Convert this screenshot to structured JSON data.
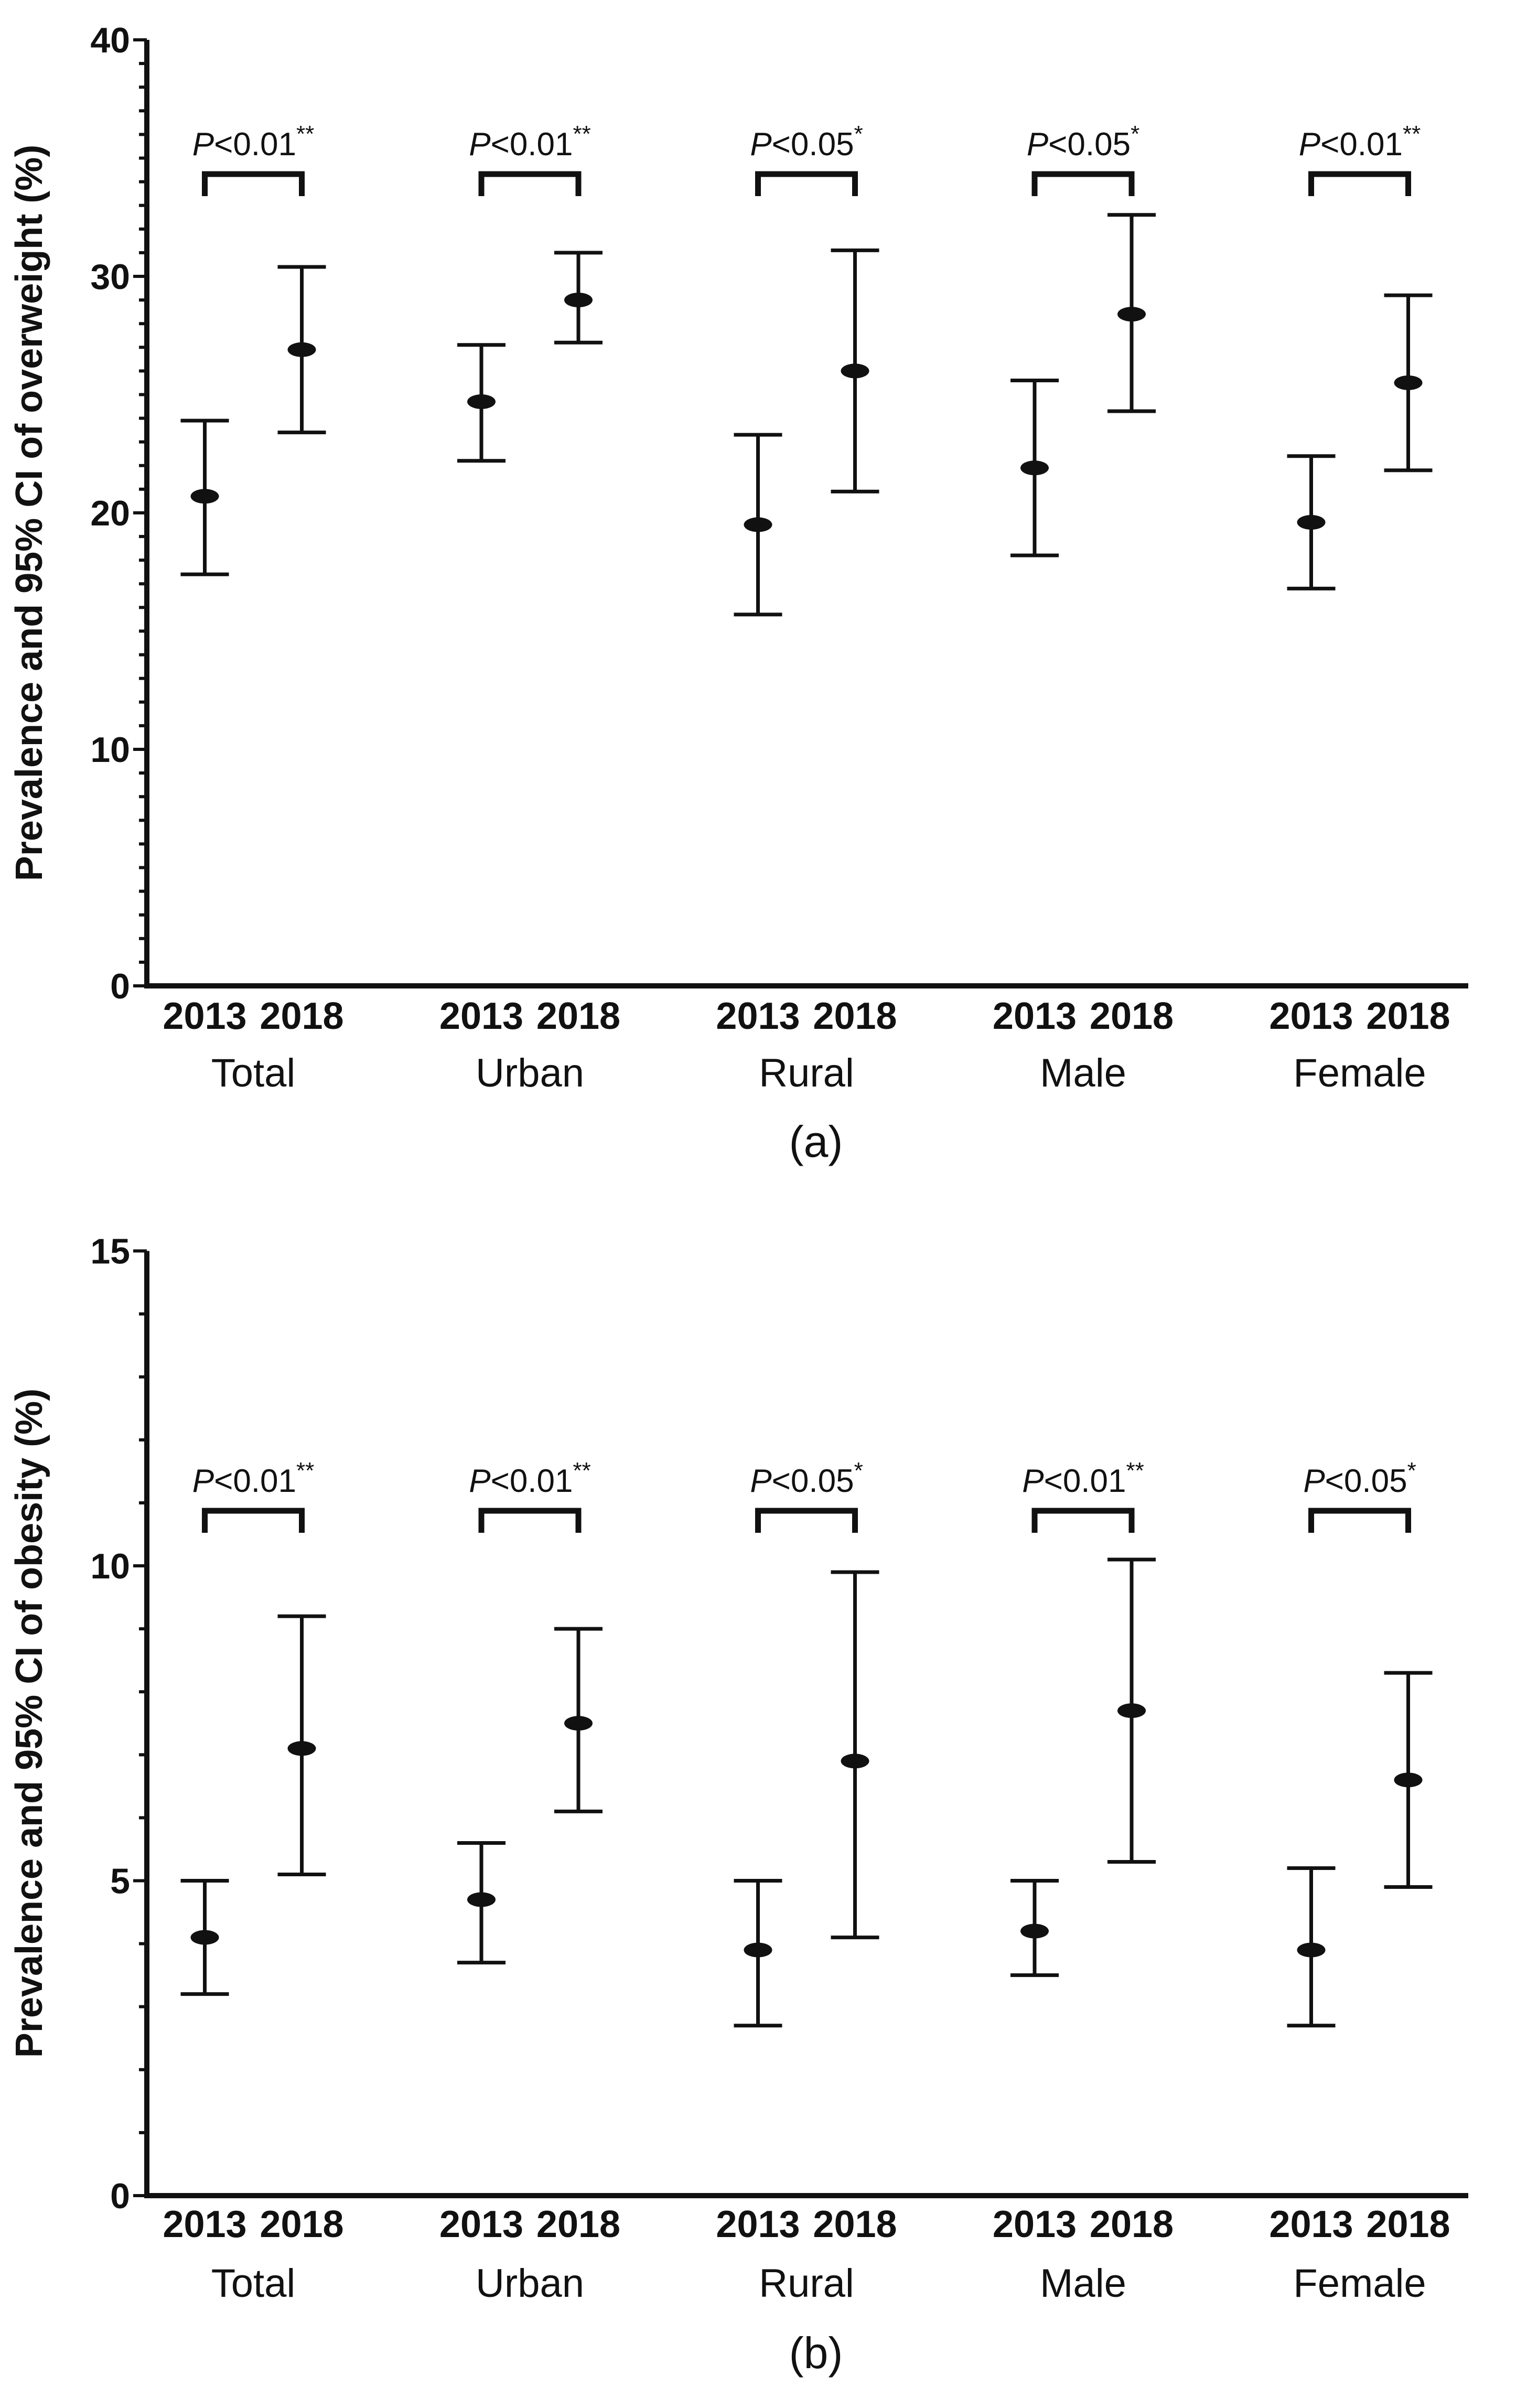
{
  "figure": {
    "background_color": "#ffffff",
    "ink_color": "#111111",
    "marker_shape": "filled-ellipse",
    "description": "Two stacked point-and-error-bar panels comparing prevalence in 2013 vs 2018 across five groups"
  },
  "chart_data": [
    {
      "type": "scatter",
      "panel_label": "(a)",
      "ylabel": "Prevalence and 95% CI of overweight (%)",
      "ylim": [
        0,
        40
      ],
      "yticks": [
        0,
        10,
        20,
        30,
        40
      ],
      "minor_tick_step": 1,
      "grid": false,
      "legend": "none",
      "categories": [
        "Total",
        "Urban",
        "Rural",
        "Male",
        "Female"
      ],
      "x_sublabels": [
        "2013",
        "2018"
      ],
      "groups": [
        {
          "label": "Total",
          "significance": {
            "p_symbol": "P",
            "p_value": "<0.01",
            "stars": "**"
          },
          "points": [
            {
              "year": "2013",
              "value": 20.7,
              "ci_low": 17.4,
              "ci_high": 23.9
            },
            {
              "year": "2018",
              "value": 26.9,
              "ci_low": 23.4,
              "ci_high": 30.4
            }
          ]
        },
        {
          "label": "Urban",
          "significance": {
            "p_symbol": "P",
            "p_value": "<0.01",
            "stars": "**"
          },
          "points": [
            {
              "year": "2013",
              "value": 24.7,
              "ci_low": 22.2,
              "ci_high": 27.1
            },
            {
              "year": "2018",
              "value": 29.0,
              "ci_low": 27.2,
              "ci_high": 31.0
            }
          ]
        },
        {
          "label": "Rural",
          "significance": {
            "p_symbol": "P",
            "p_value": "<0.05",
            "stars": "*"
          },
          "points": [
            {
              "year": "2013",
              "value": 19.5,
              "ci_low": 15.7,
              "ci_high": 23.3
            },
            {
              "year": "2018",
              "value": 26.0,
              "ci_low": 20.9,
              "ci_high": 31.1
            }
          ]
        },
        {
          "label": "Male",
          "significance": {
            "p_symbol": "P",
            "p_value": "<0.05",
            "stars": "*"
          },
          "points": [
            {
              "year": "2013",
              "value": 21.9,
              "ci_low": 18.2,
              "ci_high": 25.6
            },
            {
              "year": "2018",
              "value": 28.4,
              "ci_low": 24.3,
              "ci_high": 32.6
            }
          ]
        },
        {
          "label": "Female",
          "significance": {
            "p_symbol": "P",
            "p_value": "<0.01",
            "stars": "**"
          },
          "points": [
            {
              "year": "2013",
              "value": 19.6,
              "ci_low": 16.8,
              "ci_high": 22.4
            },
            {
              "year": "2018",
              "value": 25.5,
              "ci_low": 21.8,
              "ci_high": 29.2
            }
          ]
        }
      ]
    },
    {
      "type": "scatter",
      "panel_label": "(b)",
      "ylabel": "Prevalence and 95% CI of obesity (%)",
      "ylim": [
        0,
        15
      ],
      "yticks": [
        0,
        5,
        10,
        15
      ],
      "minor_tick_step": 1,
      "grid": false,
      "legend": "none",
      "categories": [
        "Total",
        "Urban",
        "Rural",
        "Male",
        "Female"
      ],
      "x_sublabels": [
        "2013",
        "2018"
      ],
      "groups": [
        {
          "label": "Total",
          "significance": {
            "p_symbol": "P",
            "p_value": "<0.01",
            "stars": "**"
          },
          "points": [
            {
              "year": "2013",
              "value": 4.1,
              "ci_low": 3.2,
              "ci_high": 5.0
            },
            {
              "year": "2018",
              "value": 7.1,
              "ci_low": 5.1,
              "ci_high": 9.2
            }
          ]
        },
        {
          "label": "Urban",
          "significance": {
            "p_symbol": "P",
            "p_value": "<0.01",
            "stars": "**"
          },
          "points": [
            {
              "year": "2013",
              "value": 4.7,
              "ci_low": 3.7,
              "ci_high": 5.6
            },
            {
              "year": "2018",
              "value": 7.5,
              "ci_low": 6.1,
              "ci_high": 9.0
            }
          ]
        },
        {
          "label": "Rural",
          "significance": {
            "p_symbol": "P",
            "p_value": "<0.05",
            "stars": "*"
          },
          "points": [
            {
              "year": "2013",
              "value": 3.9,
              "ci_low": 2.7,
              "ci_high": 5.0
            },
            {
              "year": "2018",
              "value": 6.9,
              "ci_low": 4.1,
              "ci_high": 9.9
            }
          ]
        },
        {
          "label": "Male",
          "significance": {
            "p_symbol": "P",
            "p_value": "<0.01",
            "stars": "**"
          },
          "points": [
            {
              "year": "2013",
              "value": 4.2,
              "ci_low": 3.5,
              "ci_high": 5.0
            },
            {
              "year": "2018",
              "value": 7.7,
              "ci_low": 5.3,
              "ci_high": 10.1
            }
          ]
        },
        {
          "label": "Female",
          "significance": {
            "p_symbol": "P",
            "p_value": "<0.05",
            "stars": "*"
          },
          "points": [
            {
              "year": "2013",
              "value": 3.9,
              "ci_low": 2.7,
              "ci_high": 5.2
            },
            {
              "year": "2018",
              "value": 6.6,
              "ci_low": 4.9,
              "ci_high": 8.3
            }
          ]
        }
      ]
    }
  ]
}
